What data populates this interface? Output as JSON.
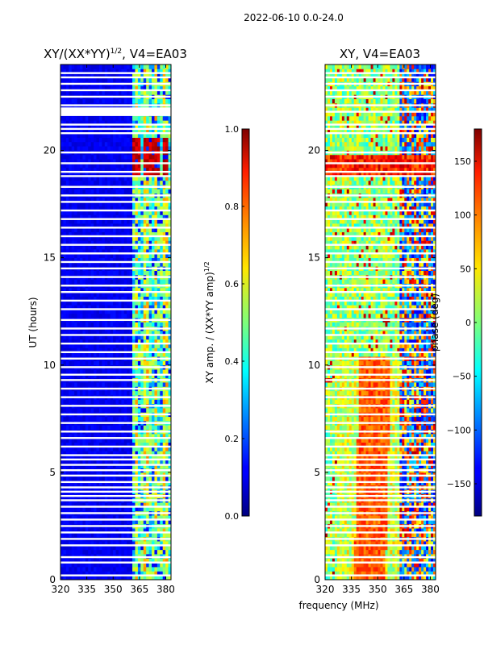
{
  "suptitle": "2022-06-10 0.0-24.0",
  "shared_xlabel": "frequency (MHz)",
  "chart_data": [
    {
      "type": "heatmap",
      "title": "XY/(XX*YY)^{1/2}, V4=EA03",
      "title_main": "XY/(XX*YY)",
      "title_sup": "1/2",
      "title_tail": ", V4=EA03",
      "xlabel": "frequency (MHz)",
      "ylabel": "UT (hours)",
      "xlim": [
        320,
        383
      ],
      "ylim": [
        0,
        24
      ],
      "xticks": [
        320,
        335,
        350,
        365,
        380
      ],
      "yticks": [
        0,
        5,
        10,
        15,
        20
      ],
      "colorbar": {
        "label_main": "XY amp. / (XX*YY amp)",
        "label_sup": "1/2",
        "range": [
          0.0,
          1.0
        ],
        "ticks": [
          "0.0",
          "0.2",
          "0.4",
          "0.6",
          "0.8",
          "1.0"
        ],
        "tick_values": [
          0.0,
          0.2,
          0.4,
          0.6,
          0.8,
          1.0
        ]
      }
    },
    {
      "type": "heatmap",
      "title": "XY, V4=EA03",
      "xlabel": "frequency (MHz)",
      "ylabel": "",
      "xlim": [
        320,
        383
      ],
      "ylim": [
        0,
        24
      ],
      "xticks": [
        320,
        335,
        350,
        365,
        380
      ],
      "yticks": [
        0,
        5,
        10,
        15,
        20
      ],
      "colorbar": {
        "label": "phase (deg)",
        "range": [
          -180,
          180
        ],
        "ticks": [
          "150",
          "100",
          "50",
          "0",
          "−50",
          "−100",
          "−150"
        ],
        "tick_values": [
          150,
          100,
          50,
          0,
          -50,
          -100,
          -150
        ]
      }
    }
  ],
  "flagged_rows_hours": [
    0.2,
    0.8,
    1.05,
    1.6,
    1.9,
    2.2,
    2.5,
    2.8,
    3.1,
    3.4,
    3.7,
    3.9,
    4.1,
    4.3,
    4.55,
    4.85,
    5.1,
    5.35,
    5.6,
    5.8,
    6.2,
    6.6,
    6.9,
    7.3,
    7.7,
    8.1,
    8.5,
    8.9,
    9.3,
    9.55,
    9.9,
    10.3,
    10.6,
    11.0,
    11.4,
    11.7,
    12.1,
    12.6,
    13.0,
    13.4,
    13.7,
    14.1,
    14.5,
    14.8,
    15.2,
    15.6,
    16.0,
    16.4,
    16.8,
    17.2,
    17.6,
    17.9,
    18.3,
    18.8,
    19.0,
    19.4,
    19.9,
    20.8,
    21.0,
    21.2,
    21.8,
    22.1,
    22.5,
    22.8,
    23.1,
    23.4,
    23.6
  ]
}
